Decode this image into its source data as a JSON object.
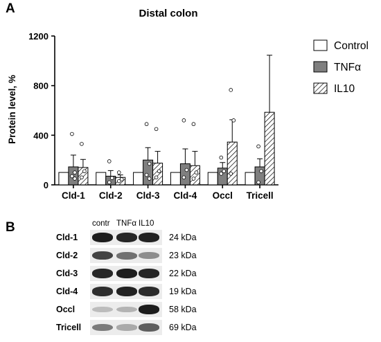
{
  "panel_a": {
    "letter": "A"
  },
  "panel_b": {
    "letter": "B",
    "lane_headers": [
      "contr",
      "TNFα",
      "IL10"
    ],
    "rows": [
      {
        "label": "Cld-1",
        "kda": "24 kDa",
        "bands": [
          0.95,
          0.9,
          0.92
        ]
      },
      {
        "label": "Cld-2",
        "kda": "23 kDa",
        "bands": [
          0.75,
          0.5,
          0.35
        ]
      },
      {
        "label": "Cld-3",
        "kda": "22 kDa",
        "bands": [
          0.9,
          0.95,
          0.9
        ]
      },
      {
        "label": "Cld-4",
        "kda": "19 kDa",
        "bands": [
          0.85,
          0.92,
          0.88
        ]
      },
      {
        "label": "Occl",
        "kda": "58 kDa",
        "bands": [
          0.1,
          0.15,
          0.95
        ]
      },
      {
        "label": "Tricell",
        "kda": "69 kDa",
        "bands": [
          0.45,
          0.2,
          0.6
        ]
      }
    ]
  },
  "chart_data": {
    "type": "bar",
    "title": "Distal colon",
    "ylabel": "Protein level, %",
    "xlabel": "",
    "ylim": [
      0,
      1200
    ],
    "yticks": [
      "0",
      "400",
      "800",
      "1200"
    ],
    "categories": [
      "Cld-1",
      "Cld-2",
      "Cld-3",
      "Cld-4",
      "Occl",
      "Tricell"
    ],
    "legend_position": "right",
    "series": [
      {
        "name": "Control",
        "fill": "#ffffff",
        "pattern": "none",
        "values": [
          100,
          100,
          100,
          100,
          100,
          100
        ],
        "errors": [
          0,
          0,
          0,
          0,
          0,
          0
        ]
      },
      {
        "name": "TNFα",
        "fill": "#7f7f7f",
        "pattern": "none",
        "values": [
          145,
          70,
          200,
          170,
          135,
          145
        ],
        "errors": [
          95,
          45,
          100,
          120,
          45,
          65
        ]
      },
      {
        "name": "IL10",
        "fill": "#ffffff",
        "pattern": "diagonal-hatch",
        "values": [
          140,
          60,
          175,
          155,
          345,
          585
        ],
        "errors": [
          65,
          20,
          95,
          115,
          180,
          460
        ]
      }
    ],
    "points": {
      "TNFα": [
        [
          410,
          100,
          70,
          50
        ],
        [
          190,
          55,
          20
        ],
        [
          490,
          170,
          80,
          50
        ],
        [
          520,
          120,
          60
        ],
        [
          220,
          110,
          90
        ],
        [
          310,
          110,
          20
        ]
      ],
      "IL10": [
        [
          330,
          110,
          60
        ],
        [
          100,
          45,
          30
        ],
        [
          450,
          110,
          60
        ],
        [
          490,
          100,
          50
        ],
        [
          765,
          520,
          90
        ],
        []
      ]
    }
  }
}
